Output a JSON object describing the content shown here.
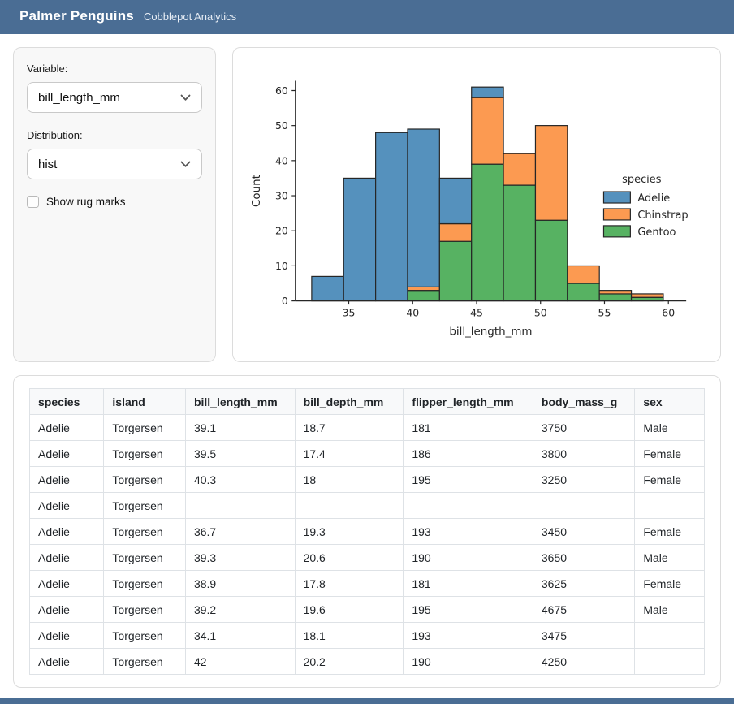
{
  "header": {
    "title": "Palmer Penguins",
    "subtitle": "Cobblepot Analytics"
  },
  "sidebar": {
    "variable_label": "Variable:",
    "variable_value": "bill_length_mm",
    "distribution_label": "Distribution:",
    "distribution_value": "hist",
    "rug_label": "Show rug marks",
    "rug_checked": false
  },
  "chart_data": {
    "type": "bar",
    "subtype": "stacked-histogram",
    "title": "",
    "xlabel": "bill_length_mm",
    "ylabel": "Count",
    "x_ticks": [
      35,
      40,
      45,
      50,
      55,
      60
    ],
    "y_ticks": [
      0,
      10,
      20,
      30,
      40,
      50,
      60
    ],
    "xlim": [
      30.8,
      61.5
    ],
    "ylim": [
      0,
      63
    ],
    "grid": false,
    "legend_title": "species",
    "legend_position": "right",
    "bin_edges": [
      32.1,
      34.6,
      37.1,
      39.6,
      42.1,
      44.6,
      47.1,
      49.6,
      52.1,
      54.6,
      57.1,
      59.6
    ],
    "series": [
      {
        "name": "Adelie",
        "color": "#5591bd",
        "values": [
          7,
          35,
          48,
          45,
          13,
          3,
          0,
          0,
          0,
          0,
          0
        ]
      },
      {
        "name": "Chinstrap",
        "color": "#fc9a51",
        "values": [
          0,
          0,
          0,
          1,
          5,
          19,
          9,
          27,
          5,
          1,
          1
        ]
      },
      {
        "name": "Gentoo",
        "color": "#57b262",
        "values": [
          0,
          0,
          0,
          3,
          17,
          39,
          33,
          23,
          5,
          2,
          1
        ]
      }
    ],
    "stack_order_bottom_to_top": [
      "Gentoo",
      "Chinstrap",
      "Adelie"
    ],
    "bar_edge_color": "#262626"
  },
  "table": {
    "columns": [
      "species",
      "island",
      "bill_length_mm",
      "bill_depth_mm",
      "flipper_length_mm",
      "body_mass_g",
      "sex"
    ],
    "rows": [
      [
        "Adelie",
        "Torgersen",
        "39.1",
        "18.7",
        "181",
        "3750",
        "Male"
      ],
      [
        "Adelie",
        "Torgersen",
        "39.5",
        "17.4",
        "186",
        "3800",
        "Female"
      ],
      [
        "Adelie",
        "Torgersen",
        "40.3",
        "18",
        "195",
        "3250",
        "Female"
      ],
      [
        "Adelie",
        "Torgersen",
        "",
        "",
        "",
        "",
        ""
      ],
      [
        "Adelie",
        "Torgersen",
        "36.7",
        "19.3",
        "193",
        "3450",
        "Female"
      ],
      [
        "Adelie",
        "Torgersen",
        "39.3",
        "20.6",
        "190",
        "3650",
        "Male"
      ],
      [
        "Adelie",
        "Torgersen",
        "38.9",
        "17.8",
        "181",
        "3625",
        "Female"
      ],
      [
        "Adelie",
        "Torgersen",
        "39.2",
        "19.6",
        "195",
        "4675",
        "Male"
      ],
      [
        "Adelie",
        "Torgersen",
        "34.1",
        "18.1",
        "193",
        "3475",
        ""
      ],
      [
        "Adelie",
        "Torgersen",
        "42",
        "20.2",
        "190",
        "4250",
        ""
      ]
    ]
  },
  "colors": {
    "header_bg": "#4a6d94",
    "adelie": "#5591bd",
    "chinstrap": "#fc9a51",
    "gentoo": "#57b262"
  },
  "icons": {
    "chevron_down": "chevron-down-icon"
  }
}
